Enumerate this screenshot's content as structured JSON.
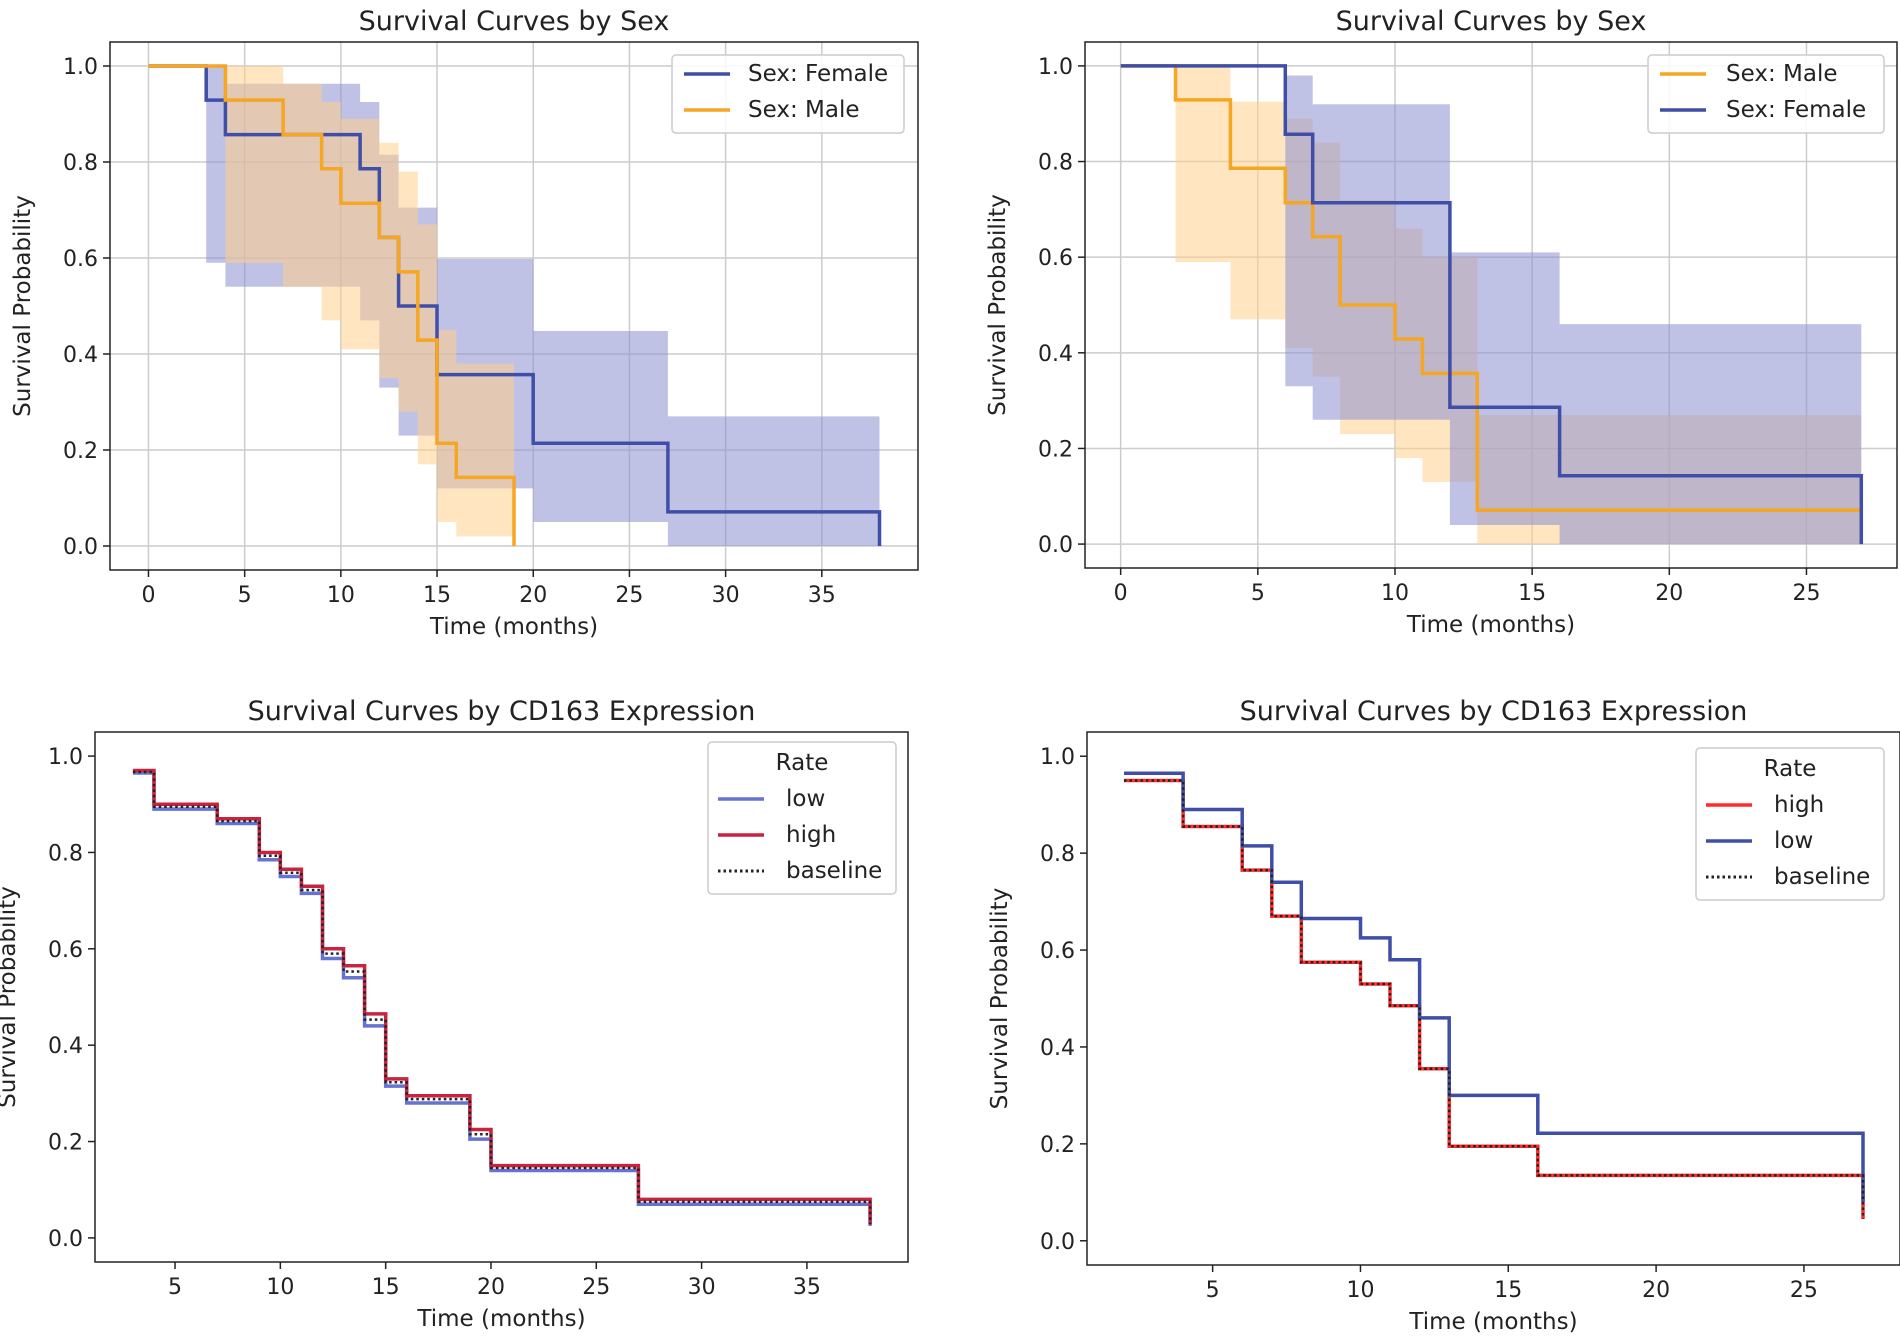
{
  "colors": {
    "female": "#3f4fa8",
    "male": "#f5a623",
    "female_ci": "#8c8fd0",
    "male_ci": "#ffd08c",
    "low_cox": "#6673d1",
    "high_cox": "#c9243f",
    "high_cox_right": "#ff2a2a",
    "baseline": "#222222",
    "grid": "#cccccc"
  },
  "chart_data": [
    {
      "type": "line",
      "title": "Survival Curves by Sex",
      "xlabel": "Time (months)",
      "ylabel": "Survival Probability",
      "xlim": [
        -2,
        40
      ],
      "ylim": [
        -0.05,
        1.05
      ],
      "xticks": [
        0,
        5,
        10,
        15,
        20,
        25,
        30,
        35
      ],
      "yticks": [
        0.0,
        0.2,
        0.4,
        0.6,
        0.8,
        1.0
      ],
      "grid": true,
      "legend": {
        "position": "top-right",
        "title": "",
        "entries": [
          "Sex: Female",
          "Sex: Male"
        ]
      },
      "series": [
        {
          "name": "Sex: Female",
          "color": "#3f4fa8",
          "line": "solid",
          "x": [
            0,
            3,
            4,
            7,
            11,
            12,
            13,
            15,
            20,
            27,
            38
          ],
          "y": [
            1.0,
            0.929,
            0.857,
            0.857,
            0.786,
            0.643,
            0.5,
            0.357,
            0.214,
            0.071,
            0.0
          ],
          "ci_upper": [
            1.0,
            1.0,
            0.963,
            0.963,
            0.925,
            0.815,
            0.705,
            0.598,
            0.448,
            0.27,
            0.27
          ],
          "ci_lower": [
            1.0,
            0.59,
            0.54,
            0.54,
            0.47,
            0.33,
            0.23,
            0.12,
            0.05,
            0.0,
            0.0
          ]
        },
        {
          "name": "Sex: Male",
          "color": "#f5a623",
          "line": "solid",
          "x": [
            0,
            4,
            7,
            9,
            10,
            12,
            13,
            14,
            15,
            16,
            19
          ],
          "y": [
            1.0,
            0.929,
            0.857,
            0.786,
            0.714,
            0.643,
            0.571,
            0.429,
            0.214,
            0.143,
            0.0
          ],
          "ci_upper": [
            1.0,
            1.0,
            0.963,
            0.925,
            0.89,
            0.84,
            0.78,
            0.67,
            0.45,
            0.38,
            0.38
          ],
          "ci_lower": [
            1.0,
            0.59,
            0.54,
            0.47,
            0.41,
            0.35,
            0.28,
            0.17,
            0.05,
            0.02,
            0.02
          ]
        }
      ]
    },
    {
      "type": "line",
      "title": "Survival Curves by Sex",
      "xlabel": "Time (months)",
      "ylabel": "Survival Probability",
      "xlim": [
        -1.3,
        28.3
      ],
      "ylim": [
        -0.05,
        1.05
      ],
      "xticks": [
        0,
        5,
        10,
        15,
        20,
        25
      ],
      "yticks": [
        0.0,
        0.2,
        0.4,
        0.6,
        0.8,
        1.0
      ],
      "grid": true,
      "legend": {
        "position": "top-right",
        "title": "",
        "entries": [
          "Sex: Male",
          "Sex: Female"
        ]
      },
      "series": [
        {
          "name": "Sex: Male",
          "color": "#f5a623",
          "line": "solid",
          "x": [
            0,
            2,
            4,
            6,
            7,
            8,
            10,
            11,
            12,
            13,
            27
          ],
          "y": [
            1.0,
            0.929,
            0.786,
            0.714,
            0.643,
            0.5,
            0.429,
            0.357,
            0.357,
            0.071,
            0.071
          ],
          "ci_upper": [
            1.0,
            1.0,
            0.925,
            0.89,
            0.84,
            0.72,
            0.66,
            0.6,
            0.6,
            0.27,
            0.27
          ],
          "ci_lower": [
            1.0,
            0.59,
            0.47,
            0.41,
            0.35,
            0.23,
            0.18,
            0.13,
            0.13,
            0.0,
            0.0
          ]
        },
        {
          "name": "Sex: Female",
          "color": "#3f4fa8",
          "line": "solid",
          "x": [
            0,
            6,
            7,
            12,
            16,
            27
          ],
          "y": [
            1.0,
            0.857,
            0.714,
            0.286,
            0.143,
            0.0
          ],
          "ci_upper": [
            1.0,
            0.98,
            0.92,
            0.61,
            0.46,
            0.46
          ],
          "ci_lower": [
            1.0,
            0.33,
            0.26,
            0.04,
            0.0,
            0.0
          ]
        }
      ]
    },
    {
      "type": "line",
      "title": "Survival Curves by CD163 Expression",
      "xlabel": "Time (months)",
      "ylabel": "Survival Probability",
      "xlim": [
        1.2,
        39.8
      ],
      "ylim": [
        -0.05,
        1.05
      ],
      "xticks": [
        5,
        10,
        15,
        20,
        25,
        30,
        35
      ],
      "yticks": [
        0.0,
        0.2,
        0.4,
        0.6,
        0.8,
        1.0
      ],
      "grid": false,
      "legend": {
        "position": "top-right",
        "title": "Rate",
        "entries": [
          "low",
          "high",
          "baseline"
        ]
      },
      "series": [
        {
          "name": "low",
          "color": "#6673d1",
          "line": "solid",
          "x": [
            3,
            4,
            7,
            9,
            10,
            11,
            12,
            13,
            14,
            15,
            16,
            19,
            20,
            27,
            38
          ],
          "y": [
            0.965,
            0.89,
            0.86,
            0.785,
            0.75,
            0.715,
            0.58,
            0.54,
            0.44,
            0.315,
            0.28,
            0.205,
            0.14,
            0.07,
            0.025
          ]
        },
        {
          "name": "high",
          "color": "#c9243f",
          "line": "solid",
          "x": [
            3,
            4,
            7,
            9,
            10,
            11,
            12,
            13,
            14,
            15,
            16,
            19,
            20,
            27,
            38
          ],
          "y": [
            0.97,
            0.9,
            0.87,
            0.8,
            0.765,
            0.73,
            0.6,
            0.565,
            0.465,
            0.33,
            0.295,
            0.225,
            0.15,
            0.08,
            0.03
          ]
        },
        {
          "name": "baseline",
          "color": "#222222",
          "line": "dotted",
          "x": [
            3,
            4,
            7,
            9,
            10,
            11,
            12,
            13,
            14,
            15,
            16,
            19,
            20,
            27,
            38
          ],
          "y": [
            0.967,
            0.895,
            0.865,
            0.793,
            0.758,
            0.722,
            0.59,
            0.553,
            0.453,
            0.323,
            0.288,
            0.215,
            0.145,
            0.075,
            0.028
          ]
        }
      ]
    },
    {
      "type": "line",
      "title": "Survival Curves by CD163 Expression",
      "xlabel": "Time (months)",
      "ylabel": "Survival Probability",
      "xlim": [
        0.75,
        28.25
      ],
      "ylim": [
        -0.05,
        1.05
      ],
      "xticks": [
        5,
        10,
        15,
        20,
        25
      ],
      "yticks": [
        0.0,
        0.2,
        0.4,
        0.6,
        0.8,
        1.0
      ],
      "grid": false,
      "legend": {
        "position": "top-right",
        "title": "Rate",
        "entries": [
          "high",
          "low",
          "baseline"
        ]
      },
      "series": [
        {
          "name": "high",
          "color": "#ff2a2a",
          "line": "solid",
          "x": [
            2,
            4,
            6,
            7,
            8,
            10,
            11,
            12,
            13,
            16,
            27
          ],
          "y": [
            0.95,
            0.855,
            0.765,
            0.67,
            0.575,
            0.53,
            0.485,
            0.355,
            0.195,
            0.135,
            0.045
          ]
        },
        {
          "name": "low",
          "color": "#3f4fa8",
          "line": "solid",
          "x": [
            2,
            4,
            6,
            7,
            8,
            10,
            11,
            12,
            13,
            16,
            27
          ],
          "y": [
            0.965,
            0.89,
            0.815,
            0.74,
            0.665,
            0.625,
            0.58,
            0.46,
            0.3,
            0.222,
            0.08
          ]
        },
        {
          "name": "baseline",
          "color": "#222222",
          "line": "dotted",
          "x": [
            2,
            4,
            6,
            7,
            8,
            10,
            11,
            12,
            13,
            16,
            27
          ],
          "y": [
            0.95,
            0.855,
            0.765,
            0.67,
            0.575,
            0.53,
            0.485,
            0.355,
            0.195,
            0.135,
            0.045
          ]
        }
      ]
    }
  ]
}
